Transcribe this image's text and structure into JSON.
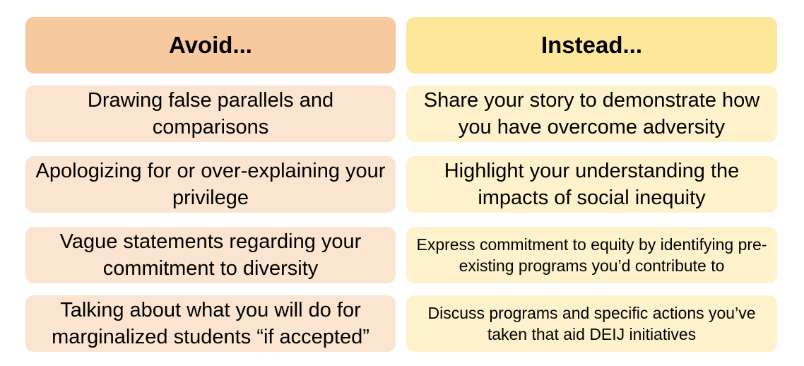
{
  "headers": {
    "avoid": "Avoid...",
    "instead": "Instead..."
  },
  "rows": [
    {
      "avoid": "Drawing false parallels and comparisons",
      "instead": "Share your story to demonstrate how you have overcome adversity"
    },
    {
      "avoid": "Apologizing for or over-explaining your privilege",
      "instead": "Highlight your understanding the impacts of social inequity"
    },
    {
      "avoid": "Vague statements regarding your commitment to diversity",
      "instead": "Express commitment to equity by identifying pre-existing programs you’d contribute to"
    },
    {
      "avoid": "Talking about what you will do for marginalized students “if accepted”",
      "instead": "Discuss programs and specific actions you’ve taken that aid DEIJ initiatives"
    }
  ],
  "colors": {
    "avoid_header": "#f8c89e",
    "instead_header": "#fde79a",
    "avoid_cell": "#fbe4d0",
    "instead_cell": "#fef2cc"
  }
}
